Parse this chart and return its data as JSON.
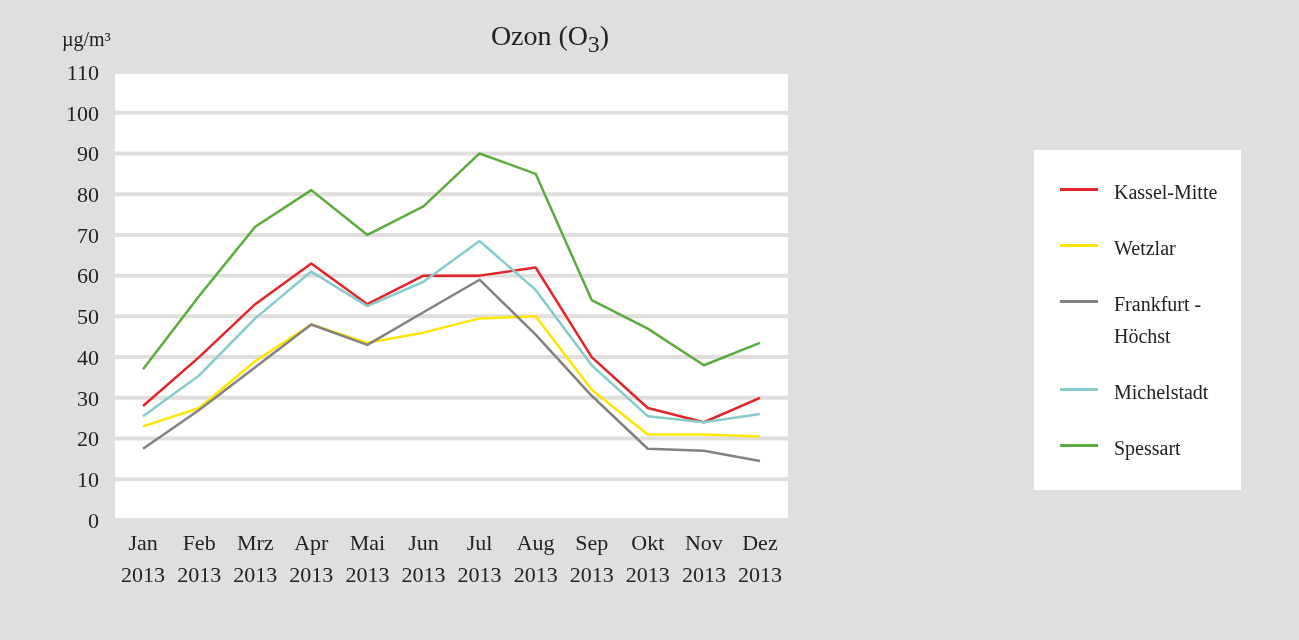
{
  "chart_data": {
    "type": "line",
    "title": "Ozon (O$_{3}$)",
    "ylabel": "µg/m³",
    "categories": [
      "Jan 2013",
      "Feb 2013",
      "Mrz 2013",
      "Apr 2013",
      "Mai 2013",
      "Jun 2013",
      "Jul 2013",
      "Aug 2013",
      "Sep 2013",
      "Okt 2013",
      "Nov 2013",
      "Dez 2013"
    ],
    "series": [
      {
        "name": "Kassel-Mitte",
        "color": "#e32428",
        "values": [
          28,
          40,
          53,
          63,
          53,
          60,
          60,
          62,
          40,
          27.5,
          24,
          30
        ]
      },
      {
        "name": "Wetzlar",
        "color": "#ffe500",
        "values": [
          23,
          27.5,
          39,
          48,
          43.5,
          46,
          49.5,
          50,
          32,
          21,
          21,
          20.5
        ]
      },
      {
        "name": "Frankfurt - Höchst",
        "color": "#838281",
        "values": [
          17.5,
          27,
          37.5,
          48,
          43,
          51,
          59,
          45.5,
          30.5,
          17.5,
          17,
          14.5
        ]
      },
      {
        "name": "Michelstadt",
        "color": "#86cccb",
        "values": [
          25.5,
          35.5,
          49.5,
          61,
          52.5,
          58.5,
          68.5,
          56.5,
          38,
          25.5,
          24,
          26
        ]
      },
      {
        "name": "Spessart",
        "color": "#5aac3e",
        "values": [
          37,
          55,
          72,
          81,
          70,
          77,
          90,
          85,
          54,
          47,
          38,
          43.5
        ]
      }
    ],
    "ylim": [
      0,
      110
    ],
    "yticks": [
      0,
      10,
      20,
      30,
      40,
      50,
      60,
      70,
      80,
      90,
      100,
      110
    ],
    "grid": "y",
    "legend": "right"
  }
}
